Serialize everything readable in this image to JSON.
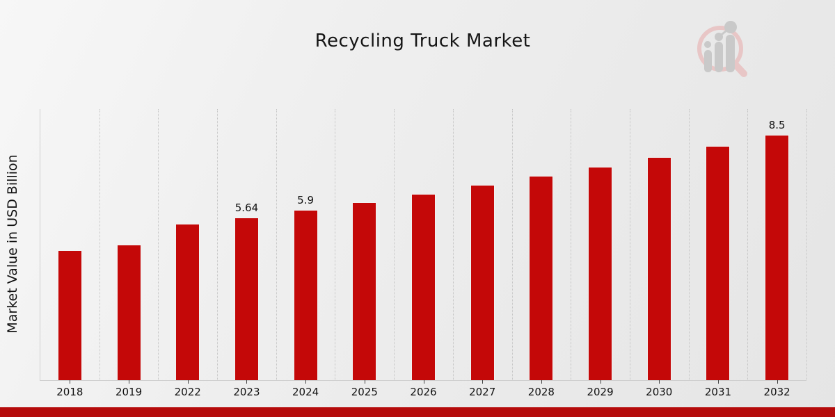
{
  "chart_data": {
    "type": "bar",
    "title": "Recycling Truck Market",
    "xlabel": "",
    "ylabel": "Market Value in USD Billion",
    "categories": [
      "2018",
      "2019",
      "2022",
      "2023",
      "2024",
      "2025",
      "2026",
      "2027",
      "2028",
      "2029",
      "2030",
      "2031",
      "2032"
    ],
    "values": [
      4.51,
      4.7,
      5.42,
      5.64,
      5.9,
      6.17,
      6.46,
      6.77,
      7.08,
      7.4,
      7.73,
      8.12,
      8.5
    ],
    "data_labels": {
      "2023": "5.64",
      "2024": "5.9",
      "2032": "8.5"
    },
    "ylim": [
      0,
      9.4
    ],
    "grid": "vertical-dotted",
    "legend_position": "none",
    "bar_color": "#c40808",
    "bar_edge_color": "#f2f2f2",
    "axis_color": "#cfcfcf",
    "accent_strip_color": "#b50b0b",
    "title_color": "#151515"
  },
  "branding": {
    "logo_icon": "magnifier-growth-chart-logo",
    "logo_ring_color": "#e8c6c6",
    "logo_bar_color": "#c9c9c9"
  }
}
